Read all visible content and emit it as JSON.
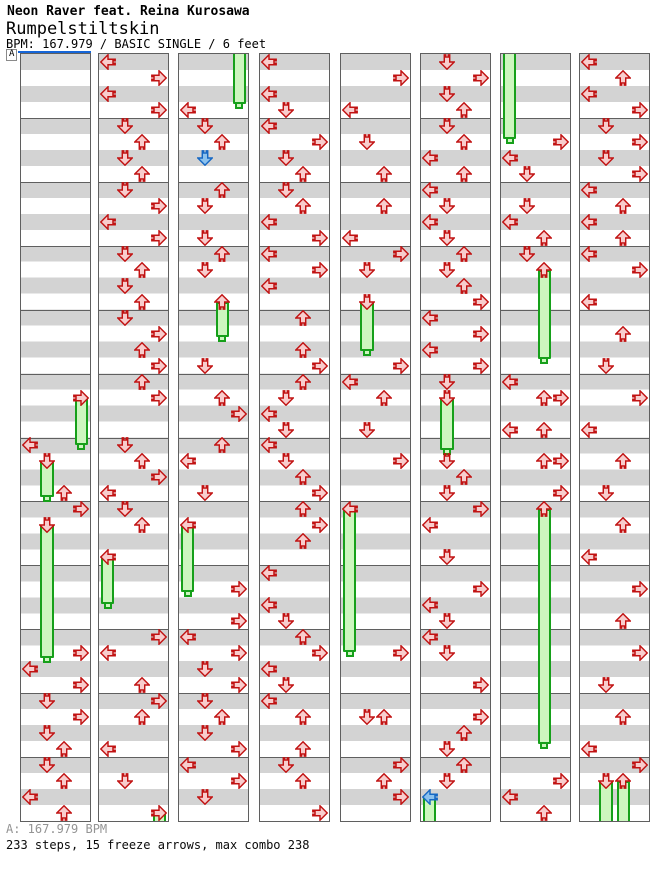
{
  "header": {
    "artist": "Neon Raver feat. Reina Kurosawa",
    "title": "Rumpelstiltskin",
    "info": "BPM: 167.979 / BASIC SINGLE / 6 feet"
  },
  "marker": {
    "label": "A"
  },
  "footer": {
    "bpm_line": "A: 167.979 BPM",
    "stats_line": "233 steps, 15 freeze arrows, max combo 238"
  },
  "colors": {
    "note_fill": "#f8cdcd",
    "note_stroke": "#c11212",
    "blue_note_fill": "#8cc2ee",
    "blue_note_stroke": "#1668c4",
    "hold_fill": "#cdf6bf",
    "hold_stroke": "#16a01a",
    "stripe_gray": "#d3d3d3",
    "grid_line": "#5f5f5f",
    "timeline_blue": "#1565d8"
  },
  "chart": {
    "rows_per_panel": 48,
    "rows_per_measure": 4,
    "lanes": [
      "left",
      "down",
      "up",
      "right"
    ],
    "panels": [
      {
        "holds_from_top": [],
        "arrows": [
          [
            21,
            "R",
            24.5
          ],
          [
            24,
            "L"
          ],
          [
            25,
            "D",
            27.7
          ],
          [
            27,
            "U"
          ],
          [
            28,
            "R"
          ],
          [
            29,
            "D",
            37.8
          ],
          [
            37,
            "R"
          ],
          [
            38,
            "L"
          ],
          [
            39,
            "R"
          ],
          [
            40,
            "D"
          ],
          [
            41,
            "R"
          ],
          [
            42,
            "D"
          ],
          [
            43,
            "U"
          ],
          [
            44,
            "D"
          ],
          [
            45,
            "U"
          ],
          [
            46,
            "L"
          ],
          [
            47,
            "U"
          ]
        ]
      },
      {
        "holds_from_top": [],
        "arrows": [
          [
            0,
            "L"
          ],
          [
            1,
            "R"
          ],
          [
            2,
            "L"
          ],
          [
            3,
            "R"
          ],
          [
            4,
            "D"
          ],
          [
            5,
            "U"
          ],
          [
            6,
            "D"
          ],
          [
            7,
            "U"
          ],
          [
            8,
            "D"
          ],
          [
            9,
            "R"
          ],
          [
            10,
            "L"
          ],
          [
            11,
            "R"
          ],
          [
            12,
            "D"
          ],
          [
            13,
            "U"
          ],
          [
            14,
            "D"
          ],
          [
            15,
            "U"
          ],
          [
            16,
            "D"
          ],
          [
            17,
            "R"
          ],
          [
            18,
            "U"
          ],
          [
            19,
            "R"
          ],
          [
            20,
            "U"
          ],
          [
            21,
            "R"
          ],
          [
            24,
            "D"
          ],
          [
            25,
            "U"
          ],
          [
            26,
            "R"
          ],
          [
            27,
            "L"
          ],
          [
            28,
            "D"
          ],
          [
            29,
            "U"
          ],
          [
            31,
            "L",
            34.4
          ],
          [
            36,
            "R"
          ],
          [
            37,
            "L"
          ],
          [
            39,
            "U"
          ],
          [
            40,
            "R"
          ],
          [
            41,
            "U"
          ],
          [
            43,
            "L"
          ],
          [
            45,
            "D"
          ],
          [
            47,
            "R",
            48.5
          ]
        ]
      },
      {
        "holds_from_top": [
          [
            "R",
            3.1
          ]
        ],
        "arrows": [
          [
            3,
            "L"
          ],
          [
            4,
            "D"
          ],
          [
            5,
            "U"
          ],
          [
            6,
            "D",
            0,
            "blue"
          ],
          [
            8,
            "U"
          ],
          [
            9,
            "D"
          ],
          [
            11,
            "D"
          ],
          [
            12,
            "U"
          ],
          [
            13,
            "D"
          ],
          [
            15,
            "U",
            17.7
          ],
          [
            19,
            "D"
          ],
          [
            21,
            "U"
          ],
          [
            22,
            "R"
          ],
          [
            24,
            "U"
          ],
          [
            25,
            "L"
          ],
          [
            27,
            "D"
          ],
          [
            29,
            "L",
            33.7
          ],
          [
            33,
            "R"
          ],
          [
            35,
            "R"
          ],
          [
            36,
            "L"
          ],
          [
            37,
            "R"
          ],
          [
            38,
            "D"
          ],
          [
            39,
            "R"
          ],
          [
            40,
            "D"
          ],
          [
            41,
            "U"
          ],
          [
            42,
            "D"
          ],
          [
            43,
            "R"
          ],
          [
            44,
            "L"
          ],
          [
            45,
            "R"
          ],
          [
            46,
            "D"
          ]
        ]
      },
      {
        "holds_from_top": [],
        "arrows": [
          [
            0,
            "L"
          ],
          [
            2,
            "L"
          ],
          [
            3,
            "D"
          ],
          [
            4,
            "L"
          ],
          [
            5,
            "R"
          ],
          [
            6,
            "D"
          ],
          [
            7,
            "U"
          ],
          [
            8,
            "D"
          ],
          [
            9,
            "U"
          ],
          [
            10,
            "L"
          ],
          [
            11,
            "R"
          ],
          [
            12,
            "L"
          ],
          [
            13,
            "R"
          ],
          [
            14,
            "L"
          ],
          [
            16,
            "U"
          ],
          [
            18,
            "U"
          ],
          [
            19,
            "R"
          ],
          [
            20,
            "U"
          ],
          [
            21,
            "D"
          ],
          [
            22,
            "L"
          ],
          [
            23,
            "D"
          ],
          [
            24,
            "L"
          ],
          [
            25,
            "D"
          ],
          [
            26,
            "U"
          ],
          [
            27,
            "R"
          ],
          [
            28,
            "U"
          ],
          [
            29,
            "R"
          ],
          [
            30,
            "U"
          ],
          [
            32,
            "L"
          ],
          [
            34,
            "L"
          ],
          [
            35,
            "D"
          ],
          [
            36,
            "U"
          ],
          [
            37,
            "R"
          ],
          [
            38,
            "L"
          ],
          [
            39,
            "D"
          ],
          [
            40,
            "L"
          ],
          [
            41,
            "U"
          ],
          [
            43,
            "U"
          ],
          [
            44,
            "D"
          ],
          [
            45,
            "U"
          ],
          [
            47,
            "R"
          ]
        ]
      },
      {
        "holds_from_top": [],
        "arrows": [
          [
            1,
            "R"
          ],
          [
            3,
            "L"
          ],
          [
            5,
            "D"
          ],
          [
            7,
            "U"
          ],
          [
            9,
            "U"
          ],
          [
            11,
            "L"
          ],
          [
            12,
            "R"
          ],
          [
            13,
            "D"
          ],
          [
            15,
            "D",
            18.6
          ],
          [
            19,
            "R"
          ],
          [
            20,
            "L"
          ],
          [
            21,
            "U"
          ],
          [
            23,
            "D"
          ],
          [
            25,
            "R"
          ],
          [
            28,
            "L",
            37.4
          ],
          [
            37,
            "R"
          ],
          [
            41,
            "D"
          ],
          [
            41,
            "U"
          ],
          [
            44,
            "R"
          ],
          [
            45,
            "U"
          ],
          [
            46,
            "R"
          ]
        ]
      },
      {
        "holds_from_top": [],
        "arrows": [
          [
            0,
            "D"
          ],
          [
            1,
            "R"
          ],
          [
            2,
            "D"
          ],
          [
            3,
            "U"
          ],
          [
            4,
            "D"
          ],
          [
            5,
            "U"
          ],
          [
            6,
            "L"
          ],
          [
            7,
            "U"
          ],
          [
            8,
            "L"
          ],
          [
            9,
            "D"
          ],
          [
            10,
            "L"
          ],
          [
            11,
            "D"
          ],
          [
            12,
            "U"
          ],
          [
            13,
            "D"
          ],
          [
            14,
            "U"
          ],
          [
            15,
            "R"
          ],
          [
            16,
            "L"
          ],
          [
            17,
            "R"
          ],
          [
            18,
            "L"
          ],
          [
            19,
            "R"
          ],
          [
            20,
            "D"
          ],
          [
            21,
            "D",
            24.8
          ],
          [
            25,
            "D"
          ],
          [
            26,
            "U"
          ],
          [
            27,
            "D"
          ],
          [
            28,
            "R"
          ],
          [
            29,
            "L"
          ],
          [
            31,
            "D"
          ],
          [
            33,
            "R"
          ],
          [
            34,
            "L"
          ],
          [
            35,
            "D"
          ],
          [
            36,
            "L"
          ],
          [
            37,
            "D"
          ],
          [
            39,
            "R"
          ],
          [
            41,
            "R"
          ],
          [
            42,
            "U"
          ],
          [
            43,
            "D"
          ],
          [
            44,
            "U"
          ],
          [
            45,
            "D"
          ],
          [
            46,
            "L",
            48.5,
            "blue"
          ]
        ]
      },
      {
        "holds_from_top": [
          [
            "L",
            5.3
          ]
        ],
        "arrows": [
          [
            5,
            "R"
          ],
          [
            6,
            "L"
          ],
          [
            7,
            "D"
          ],
          [
            9,
            "D"
          ],
          [
            10,
            "L"
          ],
          [
            11,
            "U"
          ],
          [
            12,
            "D"
          ],
          [
            13,
            "U",
            19.1
          ],
          [
            20,
            "L"
          ],
          [
            21,
            "U"
          ],
          [
            21,
            "R"
          ],
          [
            23,
            "L"
          ],
          [
            23,
            "U"
          ],
          [
            25,
            "U"
          ],
          [
            25,
            "R"
          ],
          [
            27,
            "R"
          ],
          [
            28,
            "U",
            43.2
          ],
          [
            45,
            "R"
          ],
          [
            46,
            "L"
          ],
          [
            47,
            "U"
          ]
        ]
      },
      {
        "holds_from_top": [],
        "arrows": [
          [
            0,
            "L"
          ],
          [
            1,
            "U"
          ],
          [
            2,
            "L"
          ],
          [
            3,
            "R"
          ],
          [
            4,
            "D"
          ],
          [
            5,
            "R"
          ],
          [
            6,
            "D"
          ],
          [
            7,
            "R"
          ],
          [
            8,
            "L"
          ],
          [
            9,
            "U"
          ],
          [
            10,
            "L"
          ],
          [
            11,
            "U"
          ],
          [
            12,
            "L"
          ],
          [
            13,
            "R"
          ],
          [
            15,
            "L"
          ],
          [
            17,
            "U"
          ],
          [
            19,
            "D"
          ],
          [
            21,
            "R"
          ],
          [
            23,
            "L"
          ],
          [
            25,
            "U"
          ],
          [
            27,
            "D"
          ],
          [
            29,
            "U"
          ],
          [
            31,
            "L"
          ],
          [
            33,
            "R"
          ],
          [
            35,
            "U"
          ],
          [
            37,
            "R"
          ],
          [
            39,
            "D"
          ],
          [
            41,
            "U"
          ],
          [
            43,
            "L"
          ],
          [
            44,
            "R"
          ],
          [
            45,
            "D",
            48.5
          ],
          [
            45,
            "U",
            48.5
          ]
        ]
      }
    ]
  }
}
